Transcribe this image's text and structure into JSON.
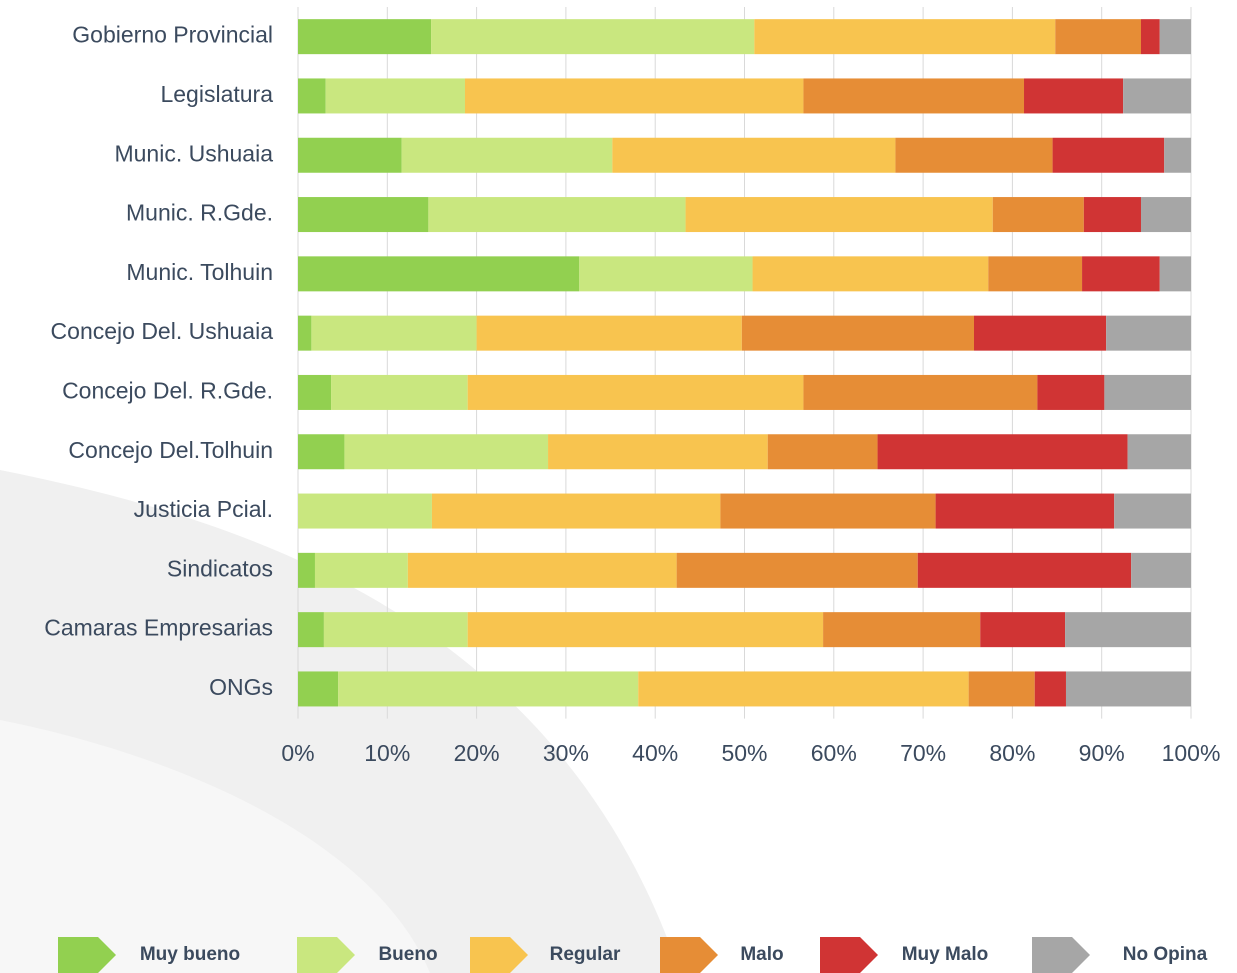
{
  "chart_data": {
    "type": "stacked_barh",
    "categories": [
      "Gobierno Provincial",
      "Legislatura",
      "Munic. Ushuaia",
      "Munic. R.Gde.",
      "Munic. Tolhuin",
      "Concejo Del. Ushuaia",
      "Concejo Del. R.Gde.",
      "Concejo Del.Tolhuin",
      "Justicia Pcial.",
      "Sindicatos",
      "Camaras Empresarias",
      "ONGs"
    ],
    "series": [
      {
        "name": "Muy bueno",
        "color": "#92d050",
        "values": [
          14.9,
          3.1,
          11.6,
          14.6,
          31.5,
          1.5,
          3.7,
          5.2,
          0,
          1.9,
          2.9,
          4.5
        ]
      },
      {
        "name": "Bueno",
        "color": "#c9e77f",
        "values": [
          36.2,
          15.6,
          23.6,
          28.8,
          19.4,
          18.5,
          15.3,
          22.8,
          15.0,
          10.4,
          16.1,
          33.6
        ]
      },
      {
        "name": "Regular",
        "color": "#f8c44f",
        "values": [
          33.7,
          37.9,
          31.7,
          34.4,
          26.4,
          29.7,
          37.6,
          24.6,
          32.3,
          30.1,
          39.8,
          37.0
        ]
      },
      {
        "name": "Malo",
        "color": "#e68d36",
        "values": [
          9.6,
          24.7,
          17.6,
          10.2,
          10.5,
          26.0,
          26.2,
          12.3,
          24.1,
          27.0,
          17.6,
          7.4
        ]
      },
      {
        "name": "Muy Malo",
        "color": "#d03434",
        "values": [
          2.1,
          11.1,
          12.5,
          6.4,
          8.7,
          14.8,
          7.5,
          28.0,
          20.0,
          23.9,
          9.5,
          3.5
        ]
      },
      {
        "name": "No Opina",
        "color": "#a6a6a6",
        "values": [
          3.5,
          7.6,
          3.0,
          5.6,
          3.5,
          9.5,
          9.7,
          7.1,
          8.6,
          6.7,
          14.1,
          14.0
        ]
      }
    ],
    "xlim": [
      0,
      100
    ],
    "xticks": [
      {
        "value": 0,
        "label": "0%"
      },
      {
        "value": 10,
        "label": "10%"
      },
      {
        "value": 20,
        "label": "20%"
      },
      {
        "value": 30,
        "label": "30%"
      },
      {
        "value": 40,
        "label": "40%"
      },
      {
        "value": 50,
        "label": "50%"
      },
      {
        "value": 60,
        "label": "60%"
      },
      {
        "value": 70,
        "label": "70%"
      },
      {
        "value": 80,
        "label": "80%"
      },
      {
        "value": 90,
        "label": "90%"
      },
      {
        "value": 100,
        "label": "100%"
      }
    ],
    "grid": true
  }
}
